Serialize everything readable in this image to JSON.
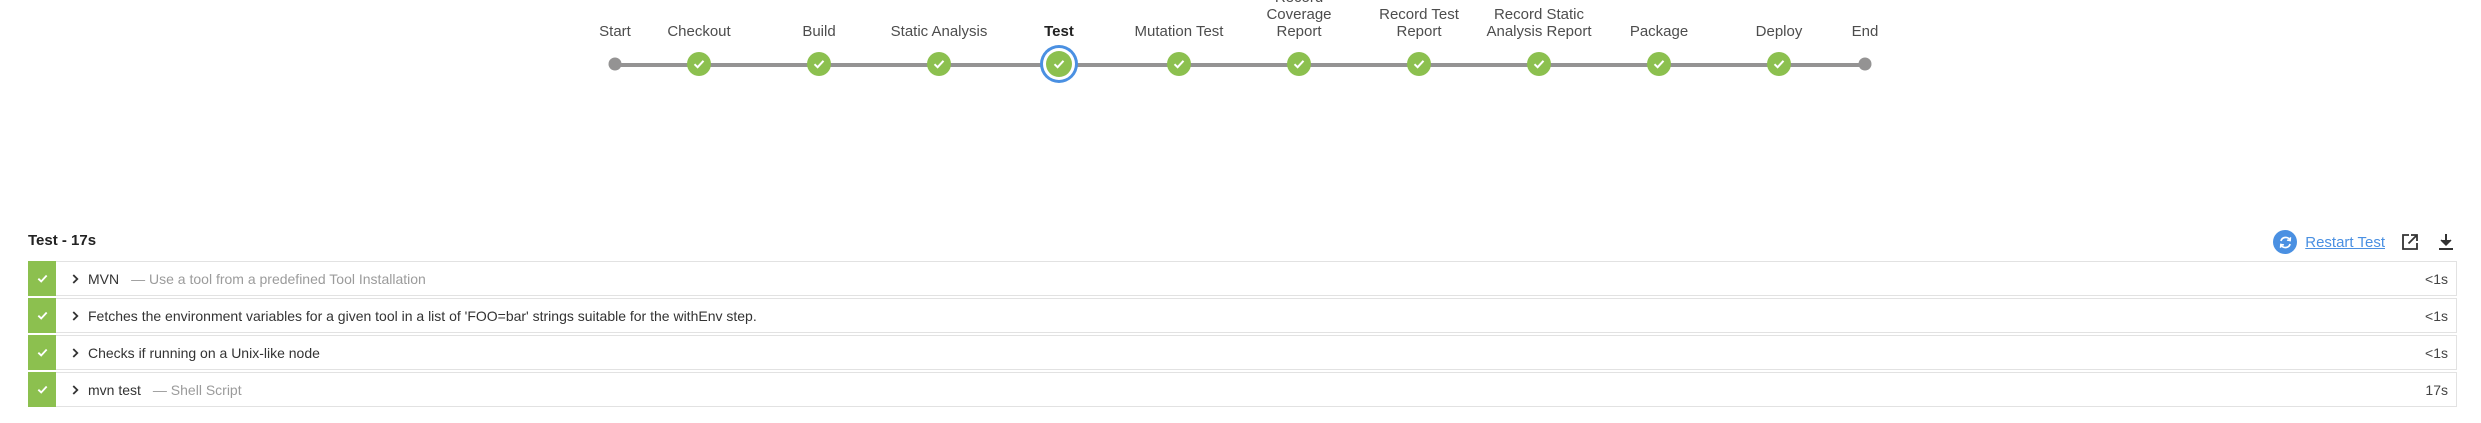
{
  "pipeline": {
    "stages": [
      {
        "label": "Start",
        "status": "endpoint"
      },
      {
        "label": "Checkout",
        "status": "success"
      },
      {
        "label": "Build",
        "status": "success"
      },
      {
        "label": "Static Analysis",
        "status": "success"
      },
      {
        "label": "Test",
        "status": "success",
        "selected": true
      },
      {
        "label": "Mutation Test",
        "status": "success"
      },
      {
        "label": "Record Coverage Report",
        "status": "success"
      },
      {
        "label": "Record Test Report",
        "status": "success"
      },
      {
        "label": "Record Static Analysis Report",
        "status": "success"
      },
      {
        "label": "Package",
        "status": "success"
      },
      {
        "label": "Deploy",
        "status": "success"
      },
      {
        "label": "End",
        "status": "endpoint"
      }
    ],
    "colors": {
      "success": "#8cc04f",
      "line": "#949393",
      "selected_ring": "#4a90e2"
    }
  },
  "details": {
    "header": "Test - 17s",
    "restart_label": "Restart Test",
    "icons": {
      "restart": "restart-icon",
      "open": "open-external-icon",
      "download": "download-icon"
    },
    "steps": [
      {
        "title": "MVN",
        "subtitle": "— Use a tool from a predefined Tool Installation",
        "duration": "<1s"
      },
      {
        "title": "Fetches the environment variables for a given tool in a list of 'FOO=bar' strings suitable for the withEnv step.",
        "subtitle": "",
        "duration": "<1s"
      },
      {
        "title": "Checks if running on a Unix-like node",
        "subtitle": "",
        "duration": "<1s"
      },
      {
        "title": "mvn test",
        "subtitle": "— Shell Script",
        "duration": "17s"
      }
    ]
  }
}
